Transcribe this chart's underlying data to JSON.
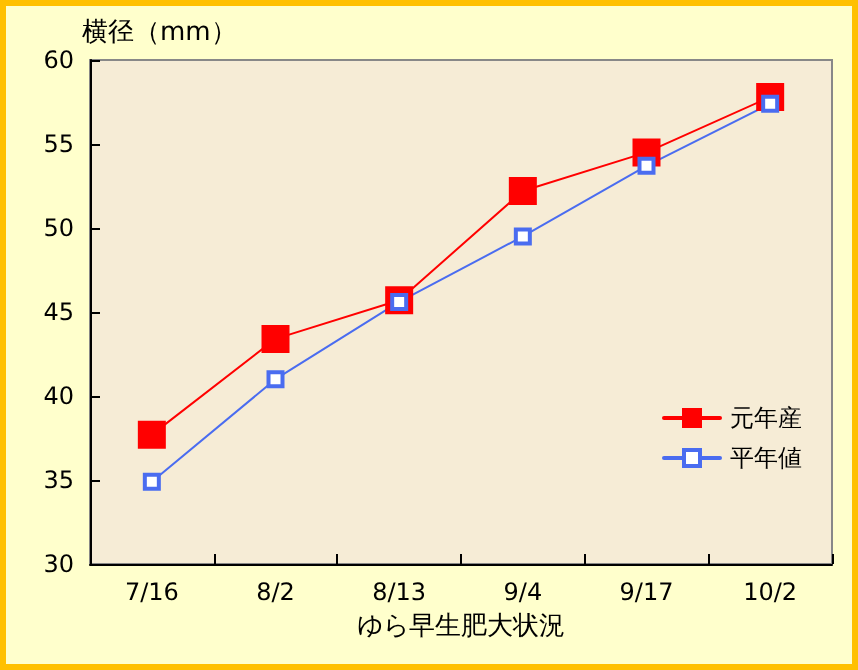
{
  "chart_data": {
    "type": "line",
    "ylabel": "横径（mm）",
    "xlabel": "ゆら早生肥大状況",
    "categories": [
      "7/16",
      "8/2",
      "8/13",
      "9/4",
      "9/17",
      "10/2"
    ],
    "series": [
      {
        "name": "元年産",
        "color": "#ff0000",
        "values": [
          37.7,
          43.4,
          45.7,
          52.2,
          54.5,
          57.8
        ]
      },
      {
        "name": "平年値",
        "color": "#4a6cf0",
        "values": [
          34.9,
          41.0,
          45.6,
          49.5,
          53.7,
          57.4
        ]
      }
    ],
    "ylim": [
      30,
      60
    ],
    "yticks": [
      30,
      35,
      40,
      45,
      50,
      55,
      60
    ],
    "grid": false,
    "legend": "right",
    "marker": "square",
    "line_style": "solid"
  }
}
